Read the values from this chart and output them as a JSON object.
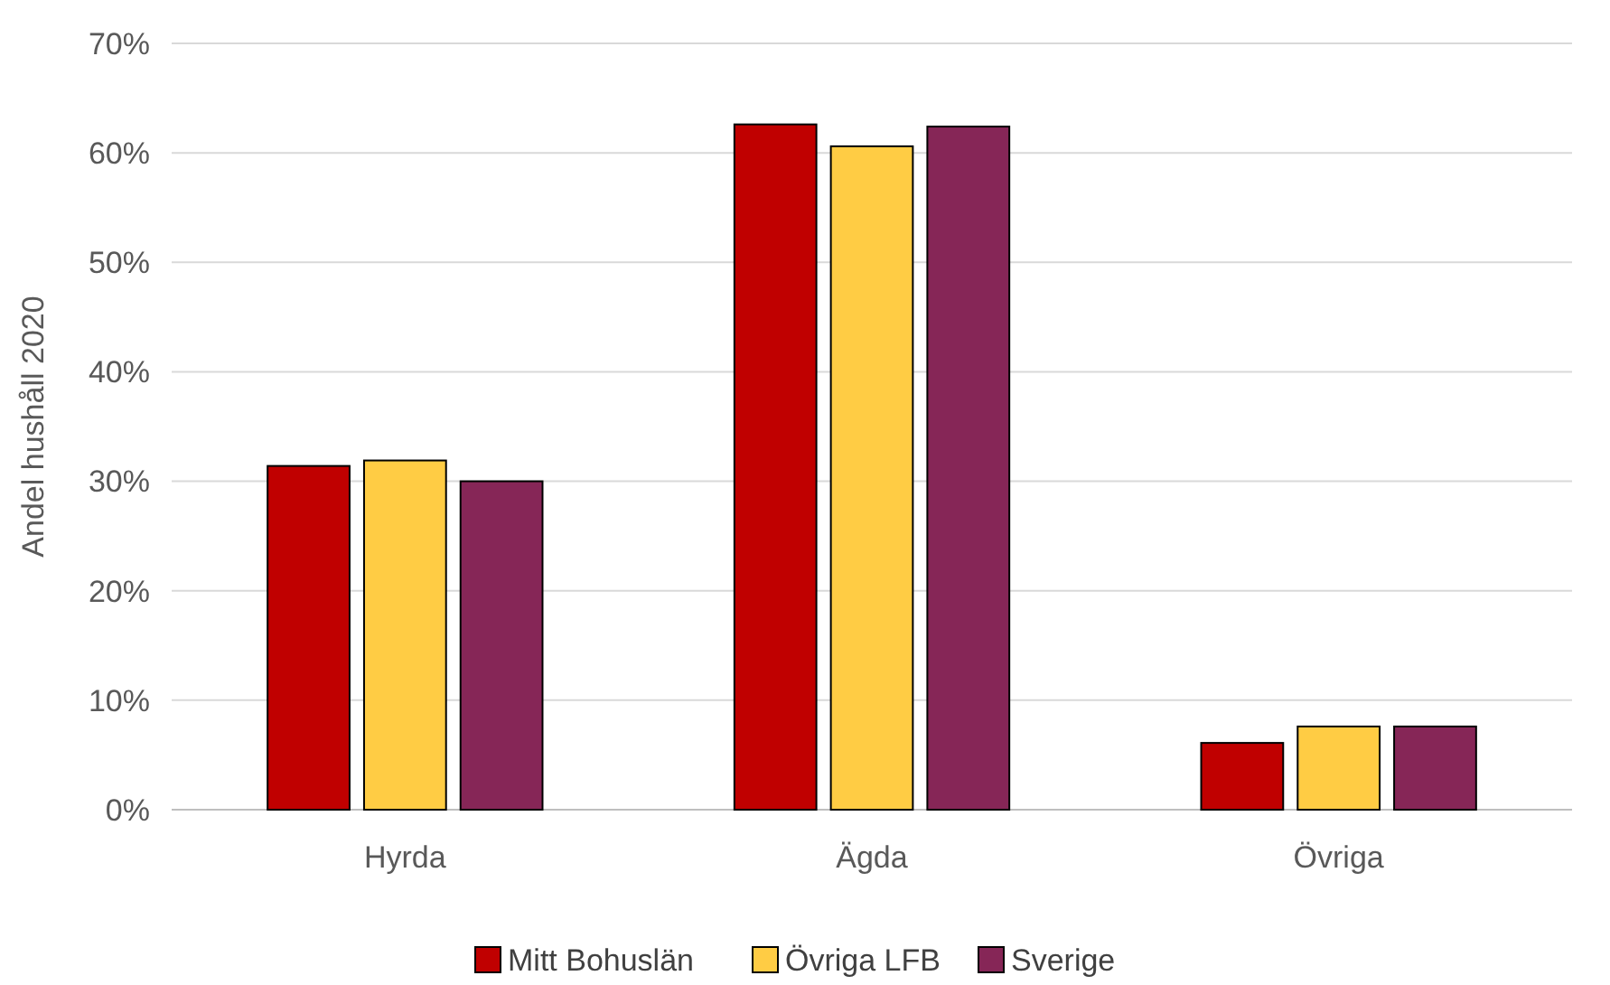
{
  "chart_data": {
    "type": "bar",
    "ylabel": "Andel hushåll 2020",
    "categories": [
      "Hyrda",
      "Ägda",
      "Övriga"
    ],
    "series": [
      {
        "name": "Mitt Bohuslän",
        "color": "#c00000",
        "values": [
          31.4,
          62.6,
          6.1
        ]
      },
      {
        "name": "Övriga LFB",
        "color": "#ffcc44",
        "values": [
          31.9,
          60.6,
          7.6
        ]
      },
      {
        "name": "Sverige",
        "color": "#862657",
        "values": [
          30.0,
          62.4,
          7.6
        ]
      }
    ],
    "ylim": [
      0,
      70
    ],
    "yticks": [
      {
        "value": 0,
        "label": "0%"
      },
      {
        "value": 10,
        "label": "10%"
      },
      {
        "value": 20,
        "label": "20%"
      },
      {
        "value": 30,
        "label": "30%"
      },
      {
        "value": 40,
        "label": "40%"
      },
      {
        "value": 50,
        "label": "50%"
      },
      {
        "value": 60,
        "label": "60%"
      },
      {
        "value": 70,
        "label": "70%"
      }
    ],
    "grid": "y",
    "legend": "bottom"
  }
}
